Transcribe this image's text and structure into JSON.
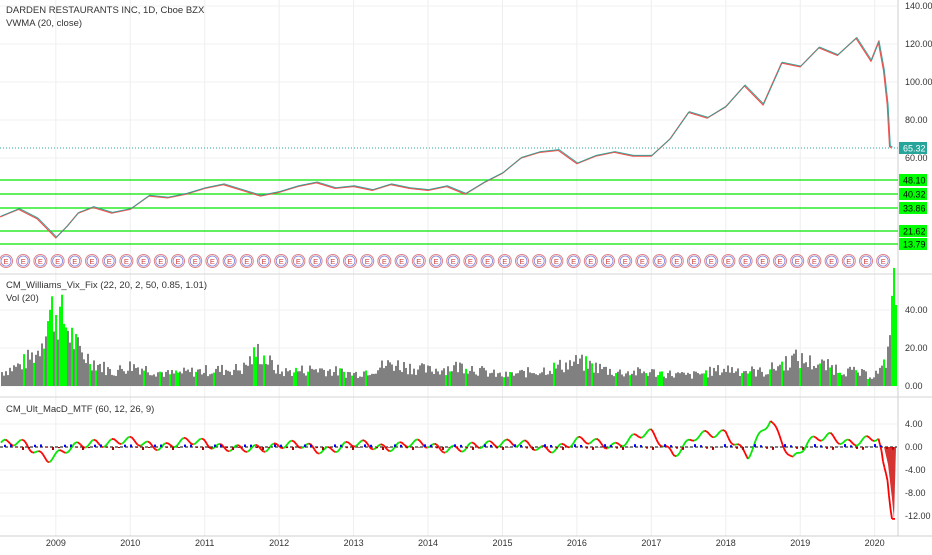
{
  "header": {
    "symbol_line": "DARDEN RESTAURANTS INC, 1D, Cboe BZX",
    "overlay_label": "VWMA (20, close)"
  },
  "price_pane": {
    "y_ticks": [
      "140.00",
      "120.00",
      "100.00",
      "80.00",
      "60.00"
    ],
    "y_tick_values": [
      140,
      120,
      100,
      80,
      60
    ],
    "current_price": "65.32",
    "current_price_value": 65.32,
    "level_lines": [
      {
        "label": "48.10",
        "value": 48.1
      },
      {
        "label": "40.32",
        "value": 40.32
      },
      {
        "label": "33.86",
        "value": 33.86
      },
      {
        "label": "21.62",
        "value": 21.62
      },
      {
        "label": "13.79",
        "value": 13.79
      }
    ],
    "earnings_marker_letter": "E",
    "colors": {
      "up": "#26a69a",
      "down": "#ef5350",
      "level": "#00e600",
      "price_badge": "#26a69a"
    }
  },
  "vix_pane": {
    "label_1": "CM_Williams_Vix_Fix (22, 20, 2, 50, 0.85, 1.01)",
    "label_2": "Vol (20)",
    "y_ticks": [
      "40.00",
      "20.00",
      "0.00"
    ],
    "y_tick_values": [
      40,
      20,
      0
    ],
    "colors": {
      "normal": "#808080",
      "spike": "#00ff00"
    }
  },
  "macd_pane": {
    "label": "CM_Ult_MacD_MTF (60, 12, 26, 9)",
    "y_ticks": [
      "4.00",
      "0.00",
      "-4.00",
      "-8.00",
      "-12.00"
    ],
    "y_tick_values": [
      4,
      0,
      -4,
      -8,
      -12
    ],
    "colors": {
      "macd_up": "#00e600",
      "macd_down": "#ff0000",
      "cross": "#ff8000",
      "hist_up": "#0000ff",
      "hist_down": "#aa0000"
    }
  },
  "x_axis": {
    "ticks": [
      "2009",
      "2010",
      "2011",
      "2012",
      "2013",
      "2014",
      "2015",
      "2016",
      "2017",
      "2018",
      "2019",
      "2020"
    ]
  },
  "chart_data": {
    "type": "line",
    "title": "DARDEN RESTAURANTS INC, 1D, Cboe BZX",
    "xlabel": "",
    "ylabel": "",
    "x_range": [
      2008.25,
      2020.3
    ],
    "price_ylim": [
      7,
      142
    ],
    "price_series": {
      "x": [
        2008.25,
        2008.5,
        2008.75,
        2008.9,
        2009.0,
        2009.15,
        2009.3,
        2009.5,
        2009.75,
        2010.0,
        2010.25,
        2010.5,
        2010.75,
        2011.0,
        2011.25,
        2011.5,
        2011.75,
        2012.0,
        2012.25,
        2012.5,
        2012.75,
        2013.0,
        2013.25,
        2013.5,
        2013.75,
        2014.0,
        2014.25,
        2014.5,
        2014.75,
        2015.0,
        2015.25,
        2015.5,
        2015.75,
        2016.0,
        2016.25,
        2016.5,
        2016.75,
        2017.0,
        2017.25,
        2017.5,
        2017.75,
        2018.0,
        2018.25,
        2018.5,
        2018.75,
        2019.0,
        2019.25,
        2019.5,
        2019.75,
        2019.95,
        2020.05,
        2020.12,
        2020.17,
        2020.2,
        2020.23
      ],
      "values": [
        29,
        33,
        28,
        22,
        18,
        24,
        31,
        34,
        31,
        33,
        40,
        39,
        41,
        44,
        46,
        43,
        40,
        42,
        45,
        47,
        44,
        45,
        43,
        46,
        44,
        43,
        45,
        41,
        47,
        52,
        60,
        63,
        64,
        57,
        61,
        63,
        61,
        61,
        70,
        84,
        81,
        87,
        98,
        88,
        110,
        108,
        118,
        114,
        123,
        111,
        121,
        106,
        88,
        66,
        65.32
      ]
    },
    "vix_fix": {
      "x": [
        2008.25,
        2008.5,
        2008.75,
        2008.85,
        2008.95,
        2009.1,
        2009.3,
        2009.5,
        2009.75,
        2010.0,
        2010.5,
        2011.0,
        2011.5,
        2011.7,
        2012.0,
        2012.5,
        2013.0,
        2013.5,
        2014.0,
        2014.5,
        2014.75,
        2015.0,
        2015.5,
        2016.0,
        2016.5,
        2017.0,
        2017.5,
        2018.0,
        2018.5,
        2018.9,
        2019.5,
        2019.95,
        2020.1,
        2020.17,
        2020.2,
        2020.23
      ],
      "values": [
        8,
        12,
        20,
        36,
        45,
        38,
        20,
        14,
        8,
        12,
        7,
        9,
        10,
        20,
        8,
        10,
        7,
        13,
        9,
        12,
        8,
        6,
        9,
        14,
        8,
        8,
        6,
        10,
        8,
        16,
        10,
        6,
        10,
        20,
        48,
        53
      ]
    },
    "macd": {
      "x": [
        2008.25,
        2008.6,
        2008.9,
        2009.1,
        2009.5,
        2010.0,
        2010.5,
        2011.0,
        2011.5,
        2012.0,
        2012.5,
        2013.0,
        2013.5,
        2014.0,
        2014.5,
        2015.0,
        2015.5,
        2016.0,
        2016.5,
        2017.0,
        2017.3,
        2017.6,
        2018.0,
        2018.3,
        2018.6,
        2018.9,
        2019.1,
        2019.4,
        2019.7,
        2019.95,
        2020.05,
        2020.12,
        2020.17,
        2020.2,
        2020.23
      ],
      "values": [
        0.5,
        0.4,
        -1.8,
        -1.0,
        1.0,
        0.8,
        0.3,
        1.0,
        -0.8,
        0.6,
        -0.4,
        0.3,
        0.2,
        0.4,
        -0.5,
        1.2,
        -0.5,
        0.9,
        0.5,
        2.3,
        -1.0,
        1.5,
        2.8,
        -1.8,
        4.8,
        -2.0,
        0.5,
        2.0,
        0.8,
        1.0,
        1.5,
        -3.0,
        -5.5,
        -9.5,
        -12.5
      ]
    }
  }
}
